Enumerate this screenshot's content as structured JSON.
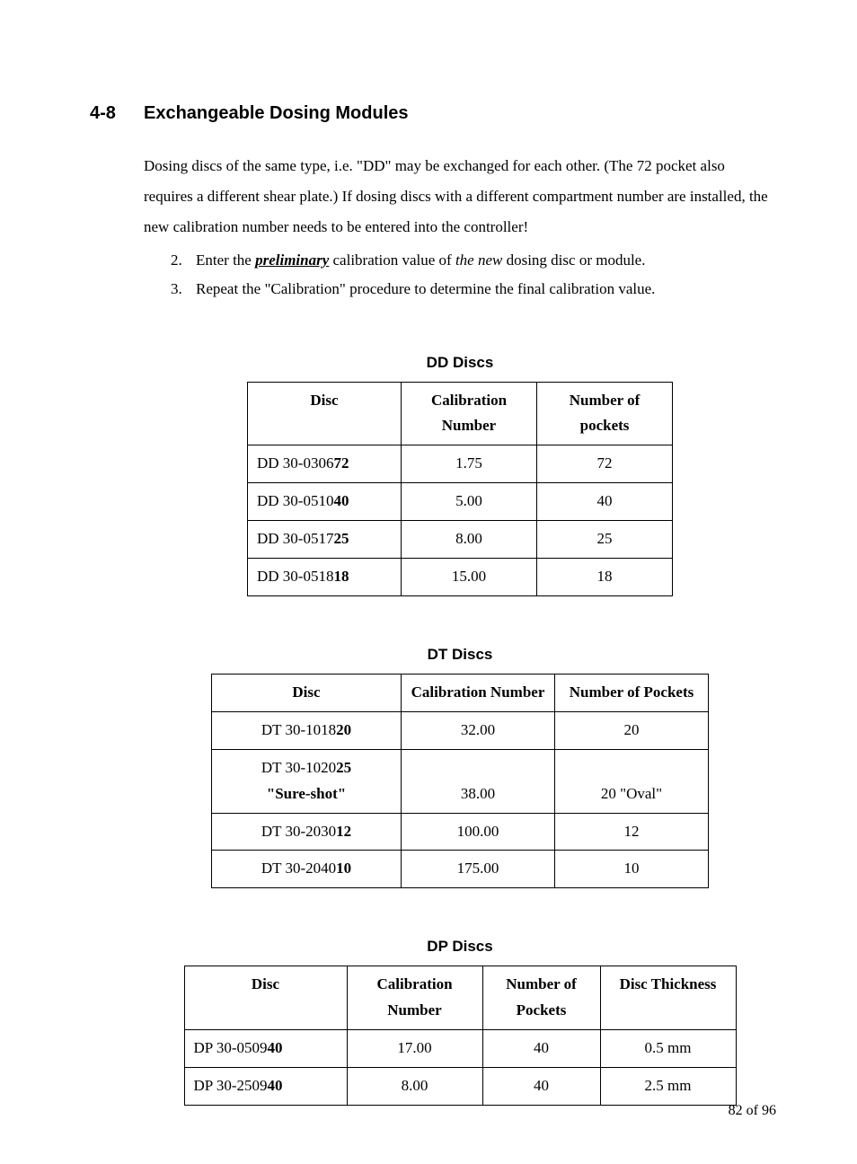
{
  "section": {
    "number": "4-8",
    "title": "Exchangeable Dosing Modules"
  },
  "paragraph": {
    "pre": "Dosing discs of the same type, i.e. \"DD\" may be exchanged for each other. (The 72 pocket also requires a different shear plate.) If dosing discs with a different compartment number are installed, the new calibration number needs to be entered into the controller!"
  },
  "list": {
    "item2_num": "2.",
    "item2_pre": "Enter the ",
    "item2_em": "preliminary",
    "item2_mid": " calibration value of ",
    "item2_em2": "the new",
    "item2_post": " dosing disc or module.",
    "item3_num": "3.",
    "item3_text": "Repeat the \"Calibration\" procedure to determine the final calibration value."
  },
  "tables": {
    "dd": {
      "title": "DD Discs",
      "headers": [
        "Disc",
        "Calibration Number",
        "Number of pockets"
      ],
      "col_widths": [
        "150px",
        "130px",
        "130px"
      ],
      "rows": [
        {
          "disc_prefix": "DD 30-0306",
          "disc_suffix": "72",
          "calibration": "1.75",
          "pockets": "72"
        },
        {
          "disc_prefix": "DD 30-0510",
          "disc_suffix": "40",
          "calibration": "5.00",
          "pockets": "40"
        },
        {
          "disc_prefix": "DD 30-0517",
          "disc_suffix": "25",
          "calibration": "8.00",
          "pockets": "25"
        },
        {
          "disc_prefix": "DD 30-0518",
          "disc_suffix": "18",
          "calibration": "15.00",
          "pockets": "18"
        }
      ]
    },
    "dt": {
      "title": "DT Discs",
      "headers": [
        "Disc",
        "Calibration Number",
        "Number of Pockets"
      ],
      "col_widths": [
        "190px",
        "150px",
        "150px"
      ],
      "rows": [
        {
          "disc_prefix": "DT 30-1018",
          "disc_suffix": "20",
          "sub": "",
          "calibration": "32.00",
          "pockets": "20"
        },
        {
          "disc_prefix": "DT 30-1020",
          "disc_suffix": "25",
          "sub": "\"Sure-shot\"",
          "calibration": "38.00",
          "pockets": "20 \"Oval\""
        },
        {
          "disc_prefix": "DT 30-2030",
          "disc_suffix": "12",
          "sub": "",
          "calibration": "100.00",
          "pockets": "12"
        },
        {
          "disc_prefix": "DT 30-2040",
          "disc_suffix": "10",
          "sub": "",
          "calibration": "175.00",
          "pockets": "10"
        }
      ]
    },
    "dp": {
      "title": "DP Discs",
      "headers": [
        "Disc",
        "Calibration Number",
        "Number of Pockets",
        "Disc Thickness"
      ],
      "col_widths": [
        "160px",
        "130px",
        "110px",
        "130px"
      ],
      "rows": [
        {
          "disc_prefix": "DP 30-0509",
          "disc_suffix": "40",
          "calibration": "17.00",
          "pockets": "40",
          "thickness": "0.5 mm"
        },
        {
          "disc_prefix": "DP 30-2509",
          "disc_suffix": "40",
          "calibration": "8.00",
          "pockets": "40",
          "thickness": "2.5 mm"
        }
      ]
    }
  },
  "footer": {
    "page": "82",
    "sep": " of ",
    "total": "96"
  }
}
